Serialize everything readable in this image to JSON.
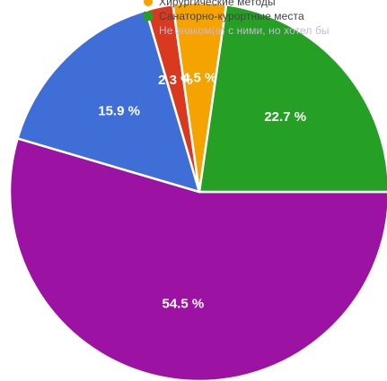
{
  "chart_data": {
    "type": "pie",
    "title": "",
    "legend_position": "top-right",
    "legend": [
      {
        "label": "Хирургические методы",
        "color": "#f5a300",
        "style": "round"
      },
      {
        "label": "Санаторно-курортные места",
        "color": "#25a025",
        "style": "square"
      },
      {
        "label": "Не знаком(а) с ними, но хотел бы",
        "color": "#9c13a4",
        "style": "none"
      }
    ],
    "slices": [
      {
        "value": 54.5,
        "label": "54.5 %",
        "color": "#9c13a4"
      },
      {
        "value": 15.9,
        "label": "15.9 %",
        "color": "#3f6fd6"
      },
      {
        "value": 2.3,
        "label": "2.3 %",
        "color": "#d93a1f"
      },
      {
        "value": 4.5,
        "label": "4.5 %",
        "color": "#f5a300"
      },
      {
        "value": 22.7,
        "label": "22.7 %",
        "color": "#25a025"
      }
    ],
    "start_angle_deg": 90,
    "direction": "clockwise"
  }
}
